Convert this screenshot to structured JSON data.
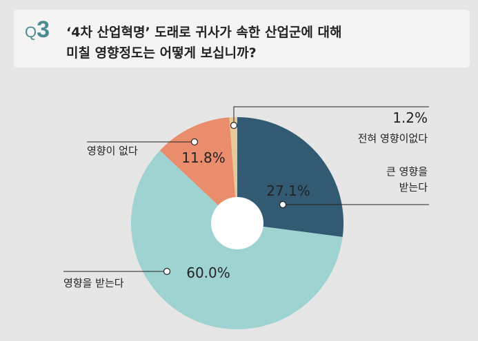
{
  "question": {
    "q_prefix": "Q",
    "q_number": "3",
    "line1": "‘4차 산업혁명’ 도래로 귀사가 속한 산업군에 대해",
    "line2": "미칠 영향정도는 어떻게 보십니까?"
  },
  "colors": {
    "accent": "#4c8c91",
    "background": "#e6e6e7",
    "panel": "#f4f4f5"
  },
  "chart_data": {
    "type": "pie",
    "title": "",
    "donut": true,
    "start": "12 o'clock",
    "direction": "clockwise",
    "slices": [
      {
        "label": "큰 영향을 받는다",
        "value": 27.1,
        "value_label": "27.1%",
        "color": "#335a73"
      },
      {
        "label": "영향을 받는다",
        "value": 60.0,
        "value_label": "60.0%",
        "color": "#9ed3d2"
      },
      {
        "label": "영향이 없다",
        "value": 11.8,
        "value_label": "11.8%",
        "color": "#ea8d6c"
      },
      {
        "label": "전혀 영향이없다",
        "value": 1.2,
        "value_label": "1.2%",
        "color": "#e5c996"
      }
    ]
  }
}
